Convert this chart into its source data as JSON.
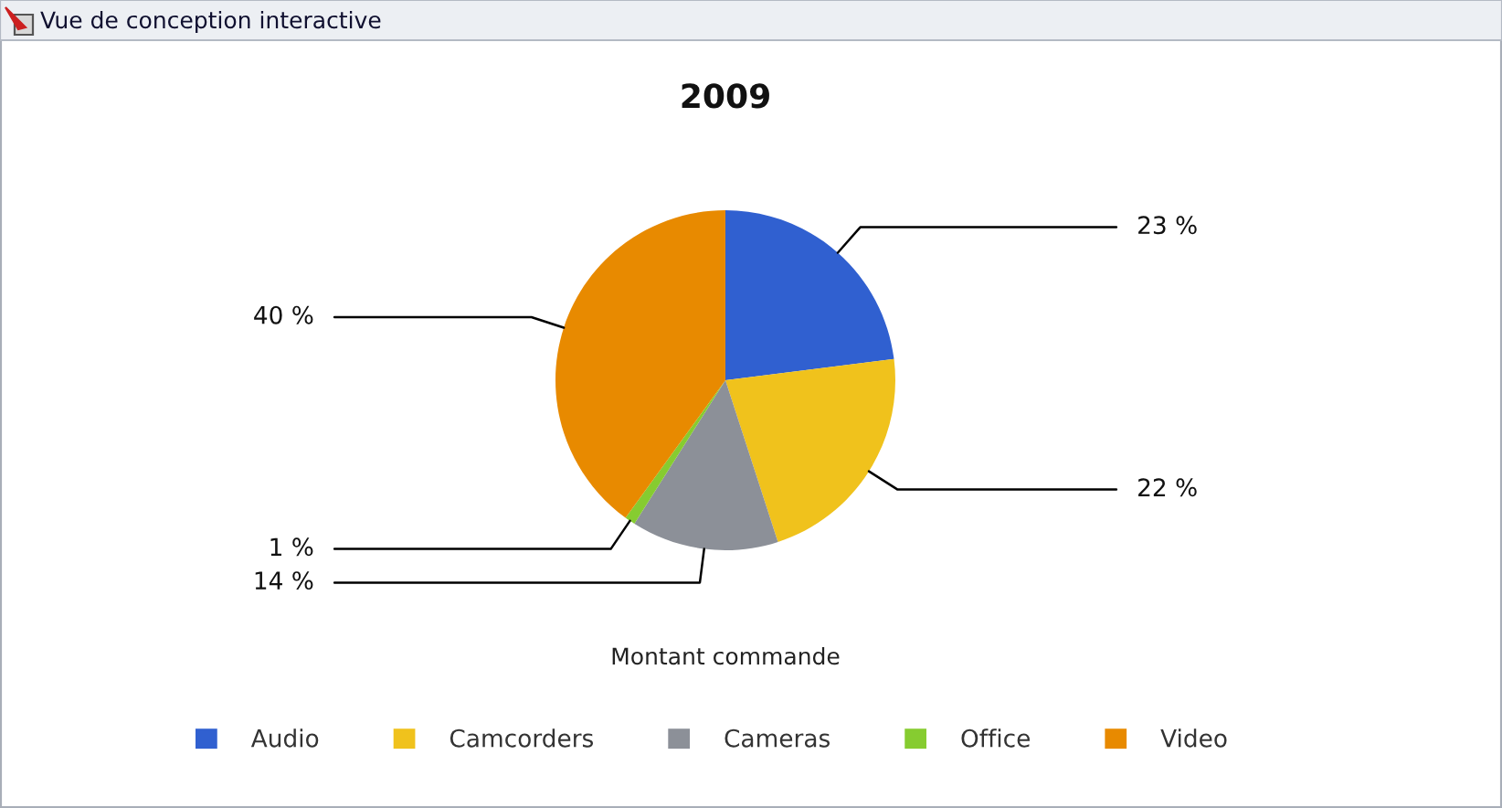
{
  "chart_data": {
    "type": "pie",
    "title": "2009",
    "xlabel": "Montant commande",
    "categories": [
      "Audio",
      "Camcorders",
      "Cameras",
      "Office",
      "Video"
    ],
    "values": [
      23,
      22,
      14,
      1,
      40
    ],
    "colors": [
      "#3060d0",
      "#f0c21c",
      "#8c9098",
      "#86cc30",
      "#e88a00"
    ],
    "value_labels": [
      "23 %",
      "22 %",
      "14 %",
      "1 %",
      "40 %"
    ],
    "legend": "bottom",
    "annotations": [
      "Vue de conception interactive"
    ]
  }
}
